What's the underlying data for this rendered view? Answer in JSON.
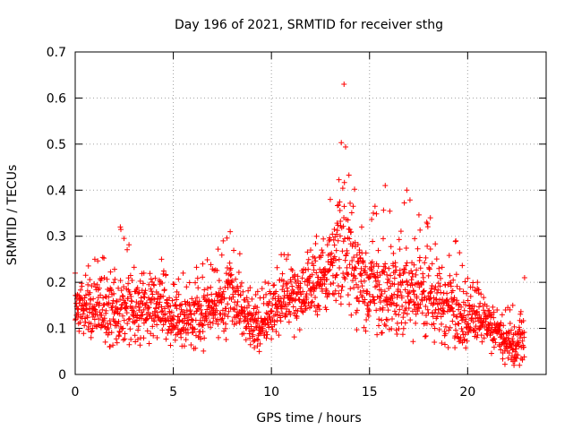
{
  "chart_data": {
    "type": "scatter",
    "title": "Day 196 of 2021, SRMTID for receiver sthg",
    "xlabel": "GPS time / hours",
    "ylabel": "SRMTID / TECUs",
    "xlim": [
      0,
      24
    ],
    "ylim": [
      0,
      0.7
    ],
    "xticks": [
      0,
      5,
      10,
      15,
      20
    ],
    "yticks": [
      0,
      0.1,
      0.2,
      0.3,
      0.4,
      0.5,
      0.6,
      0.7
    ],
    "grid": true,
    "marker": "plus",
    "color": "#ff0000",
    "series": [
      {
        "name": "SRMTID",
        "profile_note": "dense scatter of ~2000 points; typical envelope (x hours, y TECU)",
        "envelope": [
          {
            "x": 0.0,
            "low": 0.07,
            "mid": 0.14,
            "high": 0.22
          },
          {
            "x": 1.0,
            "low": 0.05,
            "mid": 0.15,
            "high": 0.25
          },
          {
            "x": 2.3,
            "low": 0.06,
            "mid": 0.14,
            "high": 0.32
          },
          {
            "x": 3.5,
            "low": 0.06,
            "mid": 0.14,
            "high": 0.22
          },
          {
            "x": 4.4,
            "low": 0.04,
            "mid": 0.15,
            "high": 0.25
          },
          {
            "x": 5.5,
            "low": 0.06,
            "mid": 0.12,
            "high": 0.22
          },
          {
            "x": 6.5,
            "low": 0.05,
            "mid": 0.12,
            "high": 0.24
          },
          {
            "x": 7.9,
            "low": 0.08,
            "mid": 0.17,
            "high": 0.31
          },
          {
            "x": 9.3,
            "low": 0.05,
            "mid": 0.1,
            "high": 0.18
          },
          {
            "x": 10.5,
            "low": 0.08,
            "mid": 0.16,
            "high": 0.26
          },
          {
            "x": 12.0,
            "low": 0.08,
            "mid": 0.18,
            "high": 0.27
          },
          {
            "x": 13.0,
            "low": 0.1,
            "mid": 0.22,
            "high": 0.38
          },
          {
            "x": 13.7,
            "low": 0.12,
            "mid": 0.3,
            "high": 0.63
          },
          {
            "x": 14.6,
            "low": 0.08,
            "mid": 0.2,
            "high": 0.32
          },
          {
            "x": 15.8,
            "low": 0.08,
            "mid": 0.18,
            "high": 0.41
          },
          {
            "x": 16.9,
            "low": 0.07,
            "mid": 0.18,
            "high": 0.4
          },
          {
            "x": 18.1,
            "low": 0.07,
            "mid": 0.17,
            "high": 0.34
          },
          {
            "x": 19.4,
            "low": 0.05,
            "mid": 0.14,
            "high": 0.29
          },
          {
            "x": 20.5,
            "low": 0.05,
            "mid": 0.12,
            "high": 0.2
          },
          {
            "x": 21.5,
            "low": 0.04,
            "mid": 0.09,
            "high": 0.14
          },
          {
            "x": 22.3,
            "low": 0.02,
            "mid": 0.05,
            "high": 0.15
          },
          {
            "x": 22.9,
            "low": 0.03,
            "mid": 0.1,
            "high": 0.21
          }
        ]
      }
    ]
  }
}
